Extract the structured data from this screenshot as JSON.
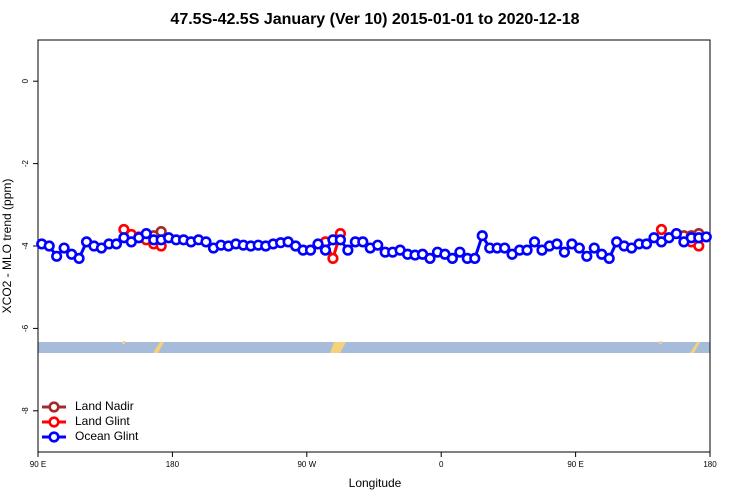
{
  "chart_data": {
    "type": "line",
    "title": "47.5S-42.5S January (Ver 10)   2015-01-01 to 2020-12-18",
    "x_label": "Longitude",
    "y_label": "XCO2 - MLO trend (ppm)",
    "xlim": [
      90,
      540
    ],
    "xticks": [
      {
        "value": 90,
        "label": "90 E"
      },
      180,
      {
        "value": 270,
        "label": "90 W"
      },
      {
        "value": 360,
        "label": "0"
      },
      {
        "value": 450,
        "label": "90 E"
      },
      {
        "value": 540,
        "label": "180"
      }
    ],
    "ylim": [
      -9,
      1
    ],
    "yticks": [
      0,
      -2,
      -4,
      -6,
      -8
    ],
    "legend": "bottom-left",
    "series": [
      {
        "name": "Land Nadir",
        "color": "#a52a2a",
        "x": [
          162.5,
          167.5,
          172.5,
          null,
          522.5,
          527.5,
          532.5
        ],
        "values": [
          -3.75,
          -3.75,
          -3.65,
          null,
          -3.75,
          -3.75,
          -3.7
        ]
      },
      {
        "name": "Land Glint",
        "color": "#ff0000",
        "x": [
          147.5,
          152.5,
          157.5,
          162.5,
          167.5,
          172.5,
          null,
          282.5,
          287.5,
          292.5,
          null,
          507.5,
          null,
          527.5,
          532.5
        ],
        "values": [
          -3.6,
          -3.72,
          -3.78,
          -3.85,
          -3.95,
          -4.0,
          null,
          -3.9,
          -4.3,
          -3.7,
          null,
          -3.6,
          null,
          -3.9,
          -4.0
        ]
      },
      {
        "name": "Ocean Glint",
        "color": "#0000ff",
        "x": [
          92.5,
          97.5,
          102.5,
          107.5,
          112.5,
          117.5,
          122.5,
          127.5,
          132.5,
          137.5,
          142.5,
          147.5,
          152.5,
          157.5,
          162.5,
          167.5,
          172.5,
          177.5,
          182.5,
          187.5,
          192.5,
          197.5,
          202.5,
          207.5,
          212.5,
          217.5,
          222.5,
          227.5,
          232.5,
          237.5,
          242.5,
          247.5,
          252.5,
          257.5,
          262.5,
          267.5,
          272.5,
          277.5,
          282.5,
          287.5,
          292.5,
          297.5,
          302.5,
          307.5,
          312.5,
          317.5,
          322.5,
          327.5,
          332.5,
          337.5,
          342.5,
          347.5,
          352.5,
          357.5,
          362.5,
          367.5,
          372.5,
          377.5,
          382.5,
          387.5,
          392.5,
          397.5,
          402.5,
          407.5,
          412.5,
          417.5,
          422.5,
          427.5,
          432.5,
          437.5,
          442.5,
          447.5,
          452.5,
          457.5,
          462.5,
          467.5,
          472.5,
          477.5,
          482.5,
          487.5,
          492.5,
          497.5,
          502.5,
          507.5,
          512.5,
          517.5,
          522.5,
          527.5,
          532.5,
          537.5
        ],
        "values": [
          -3.95,
          -4.0,
          -4.25,
          -4.05,
          -4.2,
          -4.3,
          -3.9,
          -4.0,
          -4.05,
          -3.95,
          -3.95,
          -3.8,
          -3.9,
          -3.8,
          -3.7,
          -3.85,
          -3.85,
          -3.8,
          -3.85,
          -3.85,
          -3.9,
          -3.85,
          -3.9,
          -4.05,
          -3.98,
          -4.0,
          -3.95,
          -3.98,
          -4.0,
          -3.98,
          -4.0,
          -3.95,
          -3.92,
          -3.9,
          -4.0,
          -4.1,
          -4.1,
          -3.95,
          -4.1,
          -3.85,
          -3.85,
          -4.1,
          -3.9,
          -3.9,
          -4.05,
          -3.98,
          -4.15,
          -4.15,
          -4.1,
          -4.2,
          -4.22,
          -4.2,
          -4.3,
          -4.15,
          -4.2,
          -4.3,
          -4.15,
          -4.3,
          -4.3,
          -3.75,
          -4.05,
          -4.05,
          -4.05,
          -4.2,
          -4.1,
          -4.1,
          -3.9,
          -4.1,
          -4.0,
          -3.95,
          -4.15,
          -3.95,
          -4.05,
          -4.25,
          -4.05,
          -4.2,
          -4.3,
          -3.9,
          -4.0,
          -4.05,
          -3.95,
          -3.95,
          -3.8,
          -3.9,
          -3.8,
          -3.7,
          -3.9,
          -3.8,
          -3.8,
          -3.78
        ]
      }
    ]
  }
}
